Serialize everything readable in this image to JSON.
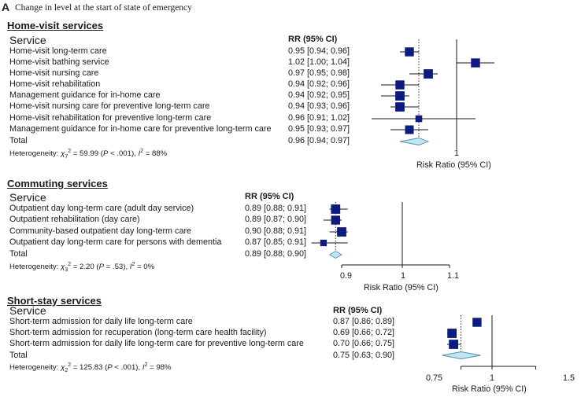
{
  "figure": {
    "panel_label": "A",
    "panel_title": "Change in level at the start of state of emergency"
  },
  "chart_data": [
    {
      "type": "forest",
      "title": "Home-visit services",
      "column_header": "Service",
      "rr_header": "RR (95% CI)",
      "xlabel": "Risk Ratio (95% CI)",
      "ticks": [
        1
      ],
      "ticks_text": [
        "1"
      ],
      "xlim": [
        0.88,
        1.06
      ],
      "rows": [
        {
          "service": "Home-visit long-term care",
          "rr_text": "0.95 [0.94; 0.96]",
          "rr": 0.95,
          "lo": 0.94,
          "hi": 0.96,
          "weight": 0.8
        },
        {
          "service": "Home-visit bathing service",
          "rr_text": "1.02 [1.00; 1.04]",
          "rr": 1.02,
          "lo": 1.0,
          "hi": 1.04,
          "weight": 0.8
        },
        {
          "service": "Home-visit nursing care",
          "rr_text": "0.97 [0.95; 0.98]",
          "rr": 0.97,
          "lo": 0.95,
          "hi": 0.98,
          "weight": 0.85
        },
        {
          "service": "Home-visit rehabilitation",
          "rr_text": "0.94 [0.92; 0.96]",
          "rr": 0.94,
          "lo": 0.92,
          "hi": 0.96,
          "weight": 0.8
        },
        {
          "service": "Management guidance for in-home care",
          "rr_text": "0.94 [0.92; 0.95]",
          "rr": 0.94,
          "lo": 0.92,
          "hi": 0.95,
          "weight": 0.85
        },
        {
          "service": "Home-visit nursing care for preventive long-term care",
          "rr_text": "0.94 [0.93; 0.96]",
          "rr": 0.94,
          "lo": 0.93,
          "hi": 0.96,
          "weight": 0.85
        },
        {
          "service": "Home-visit rehabilitation for preventive long-term care",
          "rr_text": "0.96 [0.91; 1.02]",
          "rr": 0.96,
          "lo": 0.91,
          "hi": 1.02,
          "weight": 0.45
        },
        {
          "service": "Management guidance for in-home care for preventive long-term care",
          "rr_text": "0.95 [0.93; 0.97]",
          "rr": 0.95,
          "lo": 0.93,
          "hi": 0.97,
          "weight": 0.75
        }
      ],
      "total": {
        "label": "Total",
        "rr_text": "0.96 [0.94; 0.97]",
        "rr": 0.96,
        "lo": 0.94,
        "hi": 0.97
      },
      "heterogeneity": {
        "prefix": "Heterogeneity: ",
        "chi": "χ",
        "df": "7",
        "chi_text": " = 59.99 (",
        "p_label": "P",
        "p_text": " < .001), ",
        "i_label": "I",
        "i_text": " = 88%"
      }
    },
    {
      "type": "forest",
      "title": "Commuting services",
      "column_header": "Service",
      "rr_header": "RR (95% CI)",
      "xlabel": "Risk Ratio (95% CI)",
      "ticks": [
        0.9,
        1,
        1.1
      ],
      "ticks_text": [
        "0.9",
        "1",
        "1.1"
      ],
      "xlim": [
        0.9,
        1.1
      ],
      "rows": [
        {
          "service": "Outpatient day long-term care (adult day service)",
          "rr_text": "0.89 [0.88; 0.91]",
          "rr": 0.89,
          "lo": 0.88,
          "hi": 0.91,
          "weight": 0.85
        },
        {
          "service": "Outpatient rehabilitation (day care)",
          "rr_text": "0.89 [0.87; 0.90]",
          "rr": 0.89,
          "lo": 0.87,
          "hi": 0.9,
          "weight": 0.8
        },
        {
          "service": "Community-based outpatient day long-term care",
          "rr_text": "0.90 [0.88; 0.91]",
          "rr": 0.9,
          "lo": 0.88,
          "hi": 0.91,
          "weight": 0.85
        },
        {
          "service": "Outpatient day long-term care for persons with dementia",
          "rr_text": "0.87 [0.85; 0.91]",
          "rr": 0.87,
          "lo": 0.85,
          "hi": 0.91,
          "weight": 0.4
        }
      ],
      "total": {
        "label": "Total",
        "rr_text": "0.89 [0.88; 0.90]",
        "rr": 0.89,
        "lo": 0.88,
        "hi": 0.9
      },
      "heterogeneity": {
        "prefix": "Heterogeneity: ",
        "chi": "χ",
        "df": "3",
        "chi_text": " = 2.20 (",
        "p_label": "P",
        "p_text": " = .53), ",
        "i_label": "I",
        "i_text": " = 0%"
      }
    },
    {
      "type": "forest",
      "title": "Short-stay services",
      "column_header": "Service",
      "rr_header": "RR (95% CI)",
      "xlabel": "Risk Ratio (95% CI)",
      "ticks": [
        0.75,
        1,
        1.5
      ],
      "ticks_text": [
        "0.75",
        "1",
        "1.5"
      ],
      "xlim": [
        0.75,
        1.5
      ],
      "log_scale": true,
      "rows": [
        {
          "service": "Short-term admission for daily life long-term care",
          "rr_text": "0.87 [0.86; 0.89]",
          "rr": 0.87,
          "lo": 0.86,
          "hi": 0.89,
          "weight": 0.8
        },
        {
          "service": "Short-term admission for recuperation (long-term care health facility)",
          "rr_text": "0.69 [0.66; 0.72]",
          "rr": 0.69,
          "lo": 0.66,
          "hi": 0.72,
          "weight": 0.85
        },
        {
          "service": "Short-term admission for daily life long-term care for preventive long-term care",
          "rr_text": "0.70 [0.66; 0.75]",
          "rr": 0.7,
          "lo": 0.66,
          "hi": 0.75,
          "weight": 0.85
        }
      ],
      "total": {
        "label": "Total",
        "rr_text": "0.75 [0.63; 0.90]",
        "rr": 0.75,
        "lo": 0.63,
        "hi": 0.9
      },
      "heterogeneity": {
        "prefix": "Heterogeneity: ",
        "chi": "χ",
        "df": "2",
        "chi_text": " = 125.83 (",
        "p_label": "P",
        "p_text": " < .001), ",
        "i_label": "I",
        "i_text": " = 98%"
      }
    }
  ],
  "colors": {
    "square": "#0d1a80",
    "diamond": "#bfe6f2",
    "diamond_stroke": "#5a8fa8",
    "line": "#1a1a1a"
  }
}
